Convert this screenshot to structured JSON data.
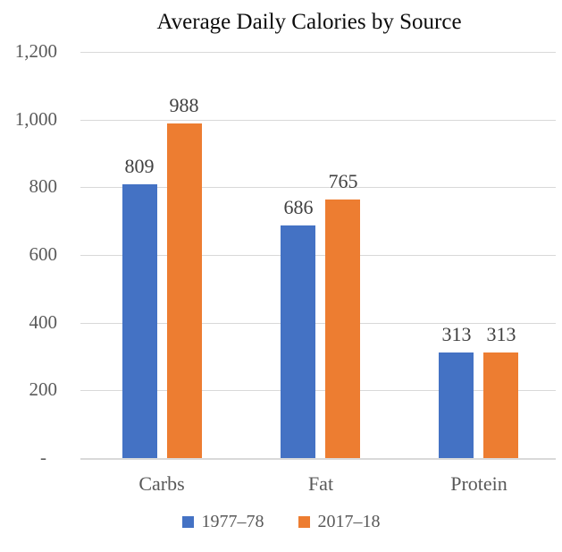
{
  "chart_data": {
    "type": "bar",
    "title": "Average Daily Calories by Source",
    "categories": [
      "Carbs",
      "Fat",
      "Protein"
    ],
    "series": [
      {
        "name": "1977–78",
        "color": "#4472C4",
        "values": [
          809,
          686,
          313
        ]
      },
      {
        "name": "2017–18",
        "color": "#ED7D31",
        "values": [
          988,
          765,
          313
        ]
      }
    ],
    "data_labels": {
      "series1": [
        "809",
        "686",
        "313"
      ],
      "series2": [
        "988",
        "765",
        "313"
      ]
    },
    "y_axis": {
      "min": 0,
      "max": 1200,
      "step": 200,
      "tick_labels": [
        "1,200",
        "1,000",
        "800",
        "600",
        "400",
        "200",
        "-"
      ]
    },
    "xlabel": "",
    "ylabel": "",
    "grid": true,
    "legend_position": "bottom",
    "colors": {
      "grid": "#D9D9D9",
      "axis_text": "#595959",
      "data_label_text": "#404040",
      "title_text": "#0D0D0D"
    }
  }
}
